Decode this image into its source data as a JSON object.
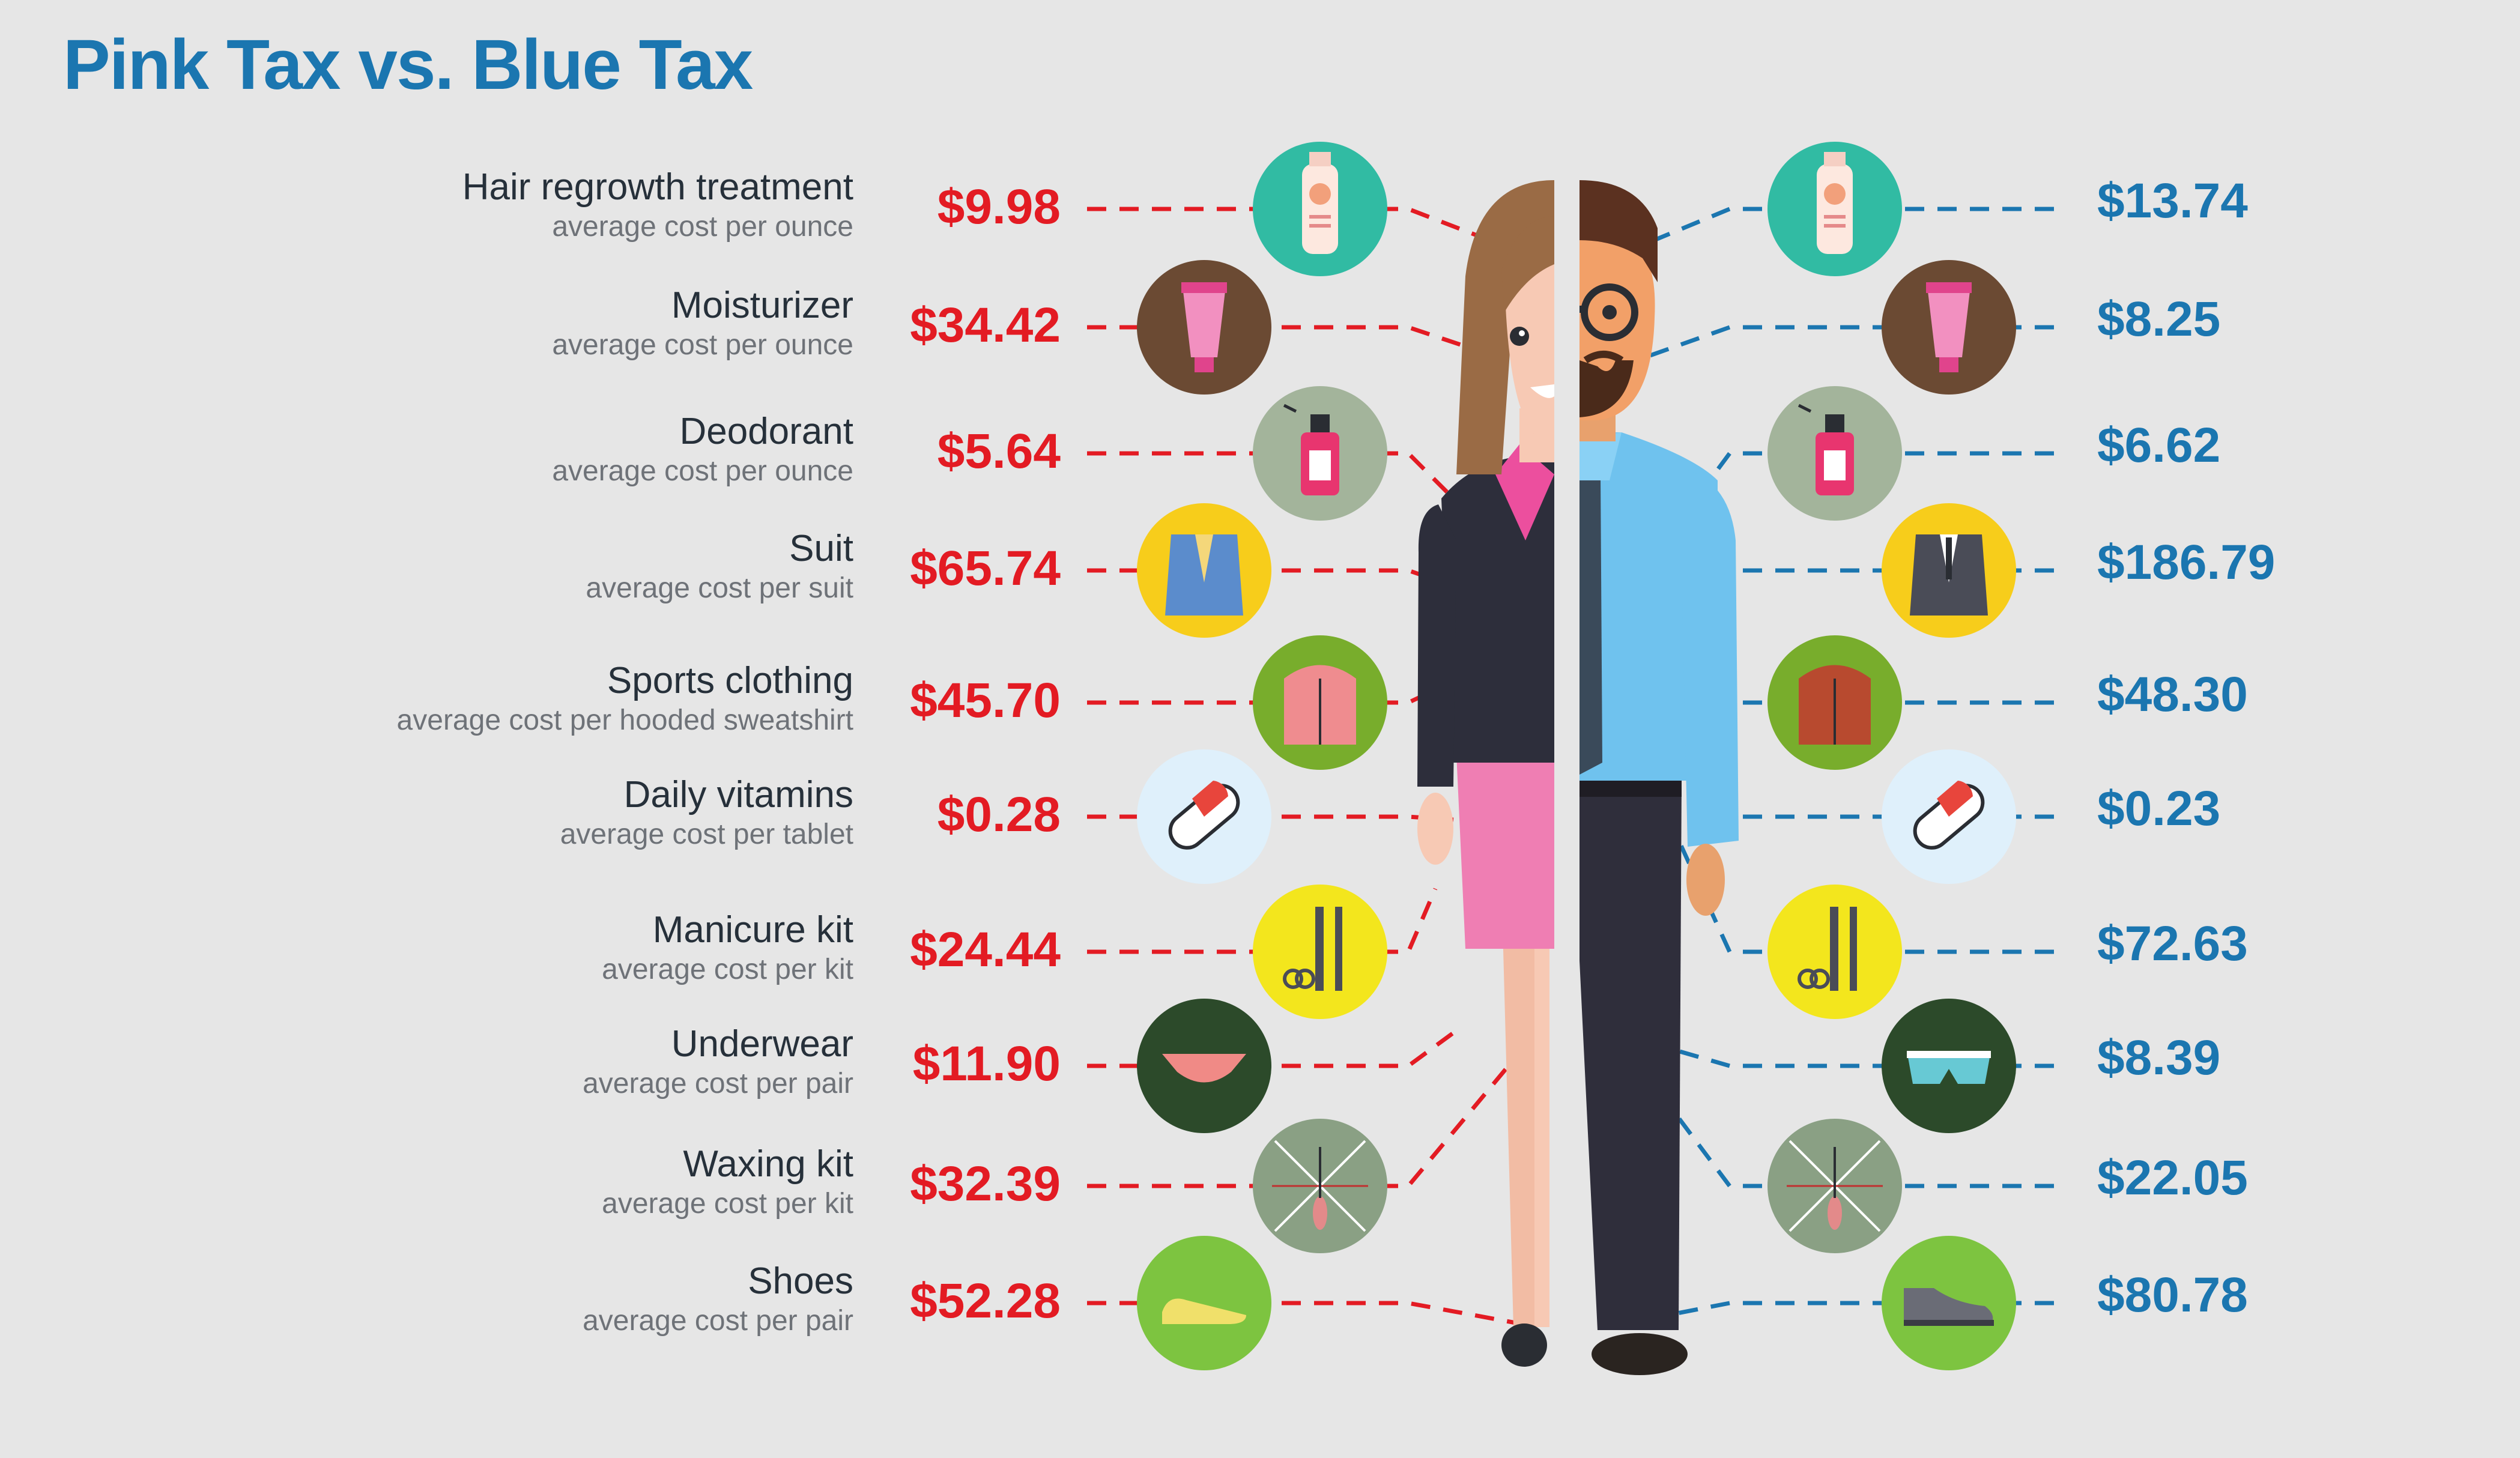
{
  "title": "Pink Tax vs. Blue Tax",
  "colors": {
    "pink_price": "#e31b23",
    "blue_price": "#1b76b0",
    "background": "#e6e6e6"
  },
  "items": [
    {
      "name": "Hair regrowth treatment",
      "unit": "average cost per ounce",
      "pink_price": "$9.98",
      "blue_price": "$13.74",
      "pink_icon": "hair-treatment-bottle-icon",
      "blue_icon": "hair-treatment-bottle-icon",
      "pink_bg": "#31bba3",
      "blue_bg": "#31bba3"
    },
    {
      "name": "Moisturizer",
      "unit": "average cost per ounce",
      "pink_price": "$34.42",
      "blue_price": "$8.25",
      "pink_icon": "moisturizer-tube-icon",
      "blue_icon": "moisturizer-tube-icon",
      "pink_bg": "#6b4a33",
      "blue_bg": "#6b4a33"
    },
    {
      "name": "Deodorant",
      "unit": "average cost per ounce",
      "pink_price": "$5.64",
      "blue_price": "$6.62",
      "pink_icon": "deodorant-spray-icon",
      "blue_icon": "deodorant-spray-icon",
      "pink_bg": "#a3b49b",
      "blue_bg": "#a3b49b"
    },
    {
      "name": "Suit",
      "unit": "average cost per suit",
      "pink_price": "$65.74",
      "blue_price": "$186.79",
      "pink_icon": "blazer-icon",
      "blue_icon": "suit-jacket-icon",
      "pink_bg": "#f7cd1b",
      "blue_bg": "#f7cd1b"
    },
    {
      "name": "Sports clothing",
      "unit": "average cost per hooded sweatshirt",
      "pink_price": "$45.70",
      "blue_price": "$48.30",
      "pink_icon": "hoodie-icon",
      "blue_icon": "hoodie-icon",
      "pink_bg": "#78ad2c",
      "blue_bg": "#78ad2c"
    },
    {
      "name": "Daily vitamins",
      "unit": "average cost per tablet",
      "pink_price": "$0.28",
      "blue_price": "$0.23",
      "pink_icon": "vitamin-capsule-icon",
      "blue_icon": "vitamin-capsule-icon",
      "pink_bg": "#dff0fb",
      "blue_bg": "#dff0fb"
    },
    {
      "name": "Manicure kit",
      "unit": "average cost per kit",
      "pink_price": "$24.44",
      "blue_price": "$72.63",
      "pink_icon": "manicure-tools-icon",
      "blue_icon": "manicure-tools-icon",
      "pink_bg": "#f3e61d",
      "blue_bg": "#f3e61d"
    },
    {
      "name": "Underwear",
      "unit": "average cost per pair",
      "pink_price": "$11.90",
      "blue_price": "$8.39",
      "pink_icon": "panties-icon",
      "blue_icon": "briefs-icon",
      "pink_bg": "#2c4a2a",
      "blue_bg": "#2c4a2a"
    },
    {
      "name": "Waxing kit",
      "unit": "average cost per kit",
      "pink_price": "$32.39",
      "blue_price": "$22.05",
      "pink_icon": "waxing-hair-icon",
      "blue_icon": "waxing-hair-icon",
      "pink_bg": "#8aa084",
      "blue_bg": "#8aa084"
    },
    {
      "name": "Shoes",
      "unit": "average cost per pair",
      "pink_price": "$52.28",
      "blue_price": "$80.78",
      "pink_icon": "flat-shoe-icon",
      "blue_icon": "oxford-shoe-icon",
      "pink_bg": "#7dc440",
      "blue_bg": "#7dc440"
    }
  ]
}
